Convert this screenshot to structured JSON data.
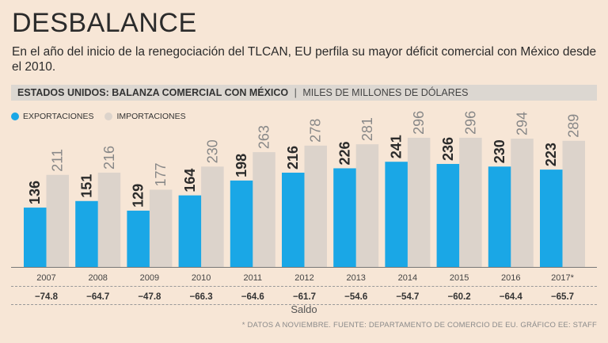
{
  "title": "DESBALANCE",
  "subtitle": "En el año del inicio de la renegociación del TLCAN, EU perfila su mayor déficit comercial con México desde el 2010.",
  "header": {
    "main": "ESTADOS UNIDOS: BALANZA COMERCIAL CON MÉXICO",
    "separator": "|",
    "units": "MILES DE MILLONES DE DÓLARES"
  },
  "legend": {
    "exports_label": "EXPORTACIONES",
    "imports_label": "IMPORTACIONES"
  },
  "saldo_label": "Saldo",
  "footer": "* DATOS A NOVIEMBRE.  FUENTE: DEPARTAMENTO DE COMERCIO DE EU. GRÁFICO EE: STAFF",
  "colors": {
    "exports": "#1aa7e6",
    "imports": "#dcd3cb",
    "background": "#f7e6d6"
  },
  "chart_data": {
    "type": "bar",
    "categories": [
      "2007",
      "2008",
      "2009",
      "2010",
      "2011",
      "2012",
      "2013",
      "2014",
      "2015",
      "2016",
      "2017*"
    ],
    "series": [
      {
        "name": "EXPORTACIONES",
        "values": [
          136,
          151,
          129,
          164,
          198,
          216,
          226,
          241,
          236,
          230,
          223
        ]
      },
      {
        "name": "IMPORTACIONES",
        "values": [
          211,
          216,
          177,
          230,
          263,
          278,
          281,
          296,
          296,
          294,
          289
        ]
      }
    ],
    "saldo": [
      "−74.8",
      "−64.7",
      "−47.8",
      "−66.3",
      "−64.6",
      "−61.7",
      "−54.6",
      "−54.7",
      "−60.2",
      "−64.4",
      "−65.7"
    ],
    "ylim": [
      0,
      320
    ],
    "grid": false,
    "legend_position": "top-left"
  }
}
